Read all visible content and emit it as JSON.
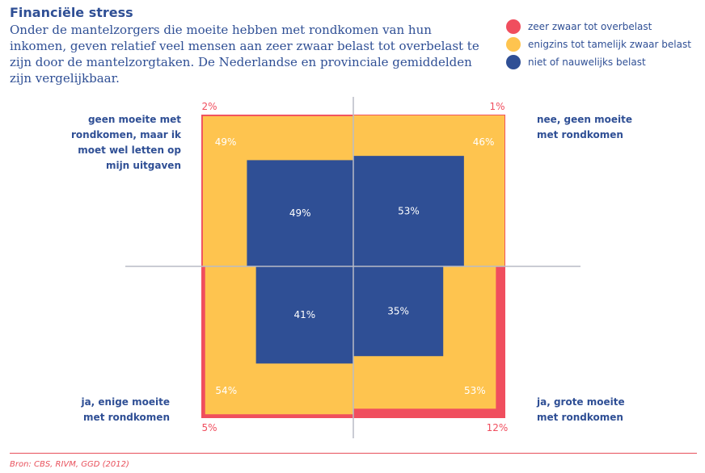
{
  "title": "Financiële stress",
  "subtitle": "Onder de mantelzorgers die moeite hebben met rondkomen van hun inkomen, geven relatief  veel mensen aan zeer zwaar belast tot overbelast te zijn door de mantelzorgtaken. De Nederlandse en provinciale gemiddelden zijn vergelijkbaar.",
  "legend": [
    {
      "label": "zeer zwaar tot overbelast",
      "color": "#f04e5e"
    },
    {
      "label": "enigzins tot tamelijk zwaar belast",
      "color": "#fec44f"
    },
    {
      "label": "niet of nauwelijks belast",
      "color": "#2f4f95"
    }
  ],
  "quadrant_labels": {
    "top_left": "geen moeite met\nrondkomen, maar ik\nmoet wel letten op\nmijn uitgaven",
    "top_right": "nee, geen moeite\nmet rondkomen",
    "bottom_left": "ja, enige moeite\nmet rondkomen",
    "bottom_right": "ja, grote moeite\nmet rondkomen"
  },
  "source": "Bron: CBS, RIVM, GGD (2012)",
  "chart_data": {
    "type": "area",
    "colors": {
      "zeer_zwaar": "#f04e5e",
      "enigzins": "#fec44f",
      "niet": "#2f4f95",
      "axis": "#b8bcc6"
    },
    "series_order": [
      "zeer zwaar tot overbelast",
      "enigzins tot tamelijk zwaar belast",
      "niet of nauwelijks belast"
    ],
    "quadrants": [
      {
        "position": "top-left",
        "category": "geen moeite met rondkomen, maar ik moet wel letten op mijn uitgaven",
        "values": [
          2,
          49,
          49
        ],
        "labels": [
          "2%",
          "49%",
          "49%"
        ]
      },
      {
        "position": "top-right",
        "category": "nee, geen moeite met rondkomen",
        "values": [
          1,
          46,
          53
        ],
        "labels": [
          "1%",
          "46%",
          "53%"
        ]
      },
      {
        "position": "bottom-left",
        "category": "ja, enige moeite met rondkomen",
        "values": [
          5,
          54,
          41
        ],
        "labels": [
          "5%",
          "54%",
          "41%"
        ]
      },
      {
        "position": "bottom-right",
        "category": "ja, grote moeite met rondkomen",
        "values": [
          12,
          53,
          35
        ],
        "labels": [
          "12%",
          "53%",
          "35%"
        ]
      }
    ]
  }
}
